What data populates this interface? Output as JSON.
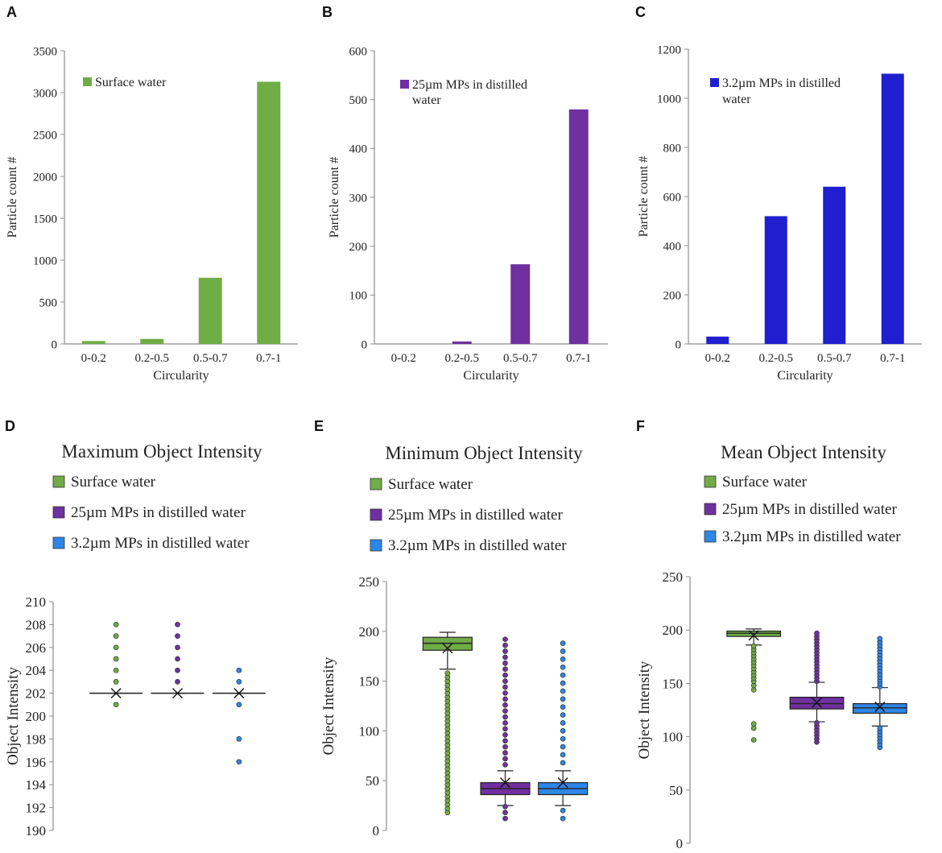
{
  "colors": {
    "green": "#70AD47",
    "purple": "#7030A0",
    "blue_bar": "#1F1FD0",
    "blue_box": "#2E86E8",
    "axis": "#8C8C8C"
  },
  "chart_data": [
    {
      "id": "A",
      "label": "A",
      "type": "bar",
      "categories": [
        "0-0.2",
        "0.2-0.5",
        "0.5-0.7",
        "0.7-1"
      ],
      "values": [
        35,
        60,
        790,
        3130
      ],
      "ylim": [
        0,
        3500
      ],
      "yticks": [
        "0",
        "500",
        "1000",
        "1500",
        "2000",
        "2500",
        "3000",
        "3500"
      ],
      "xlabel": "Circularity",
      "ylabel": "Particle count #",
      "legend": [
        "Surface water"
      ]
    },
    {
      "id": "B",
      "label": "B",
      "type": "bar",
      "categories": [
        "0-0.2",
        "0.2-0.5",
        "0.5-0.7",
        "0.7-1"
      ],
      "values": [
        0,
        5,
        163,
        480
      ],
      "ylim": [
        0,
        600
      ],
      "yticks": [
        "0",
        "100",
        "200",
        "300",
        "400",
        "500",
        "600"
      ],
      "xlabel": "Circularity",
      "ylabel": "Particle count #",
      "legend": [
        "25µm MPs in distilled",
        "water"
      ]
    },
    {
      "id": "C",
      "label": "C",
      "type": "bar",
      "categories": [
        "0-0.2",
        "0.2-0.5",
        "0.5-0.7",
        "0.7-1"
      ],
      "values": [
        30,
        520,
        640,
        1100
      ],
      "ylim": [
        0,
        1200
      ],
      "yticks": [
        "0",
        "200",
        "400",
        "600",
        "800",
        "1000",
        "1200"
      ],
      "xlabel": "Circularity",
      "ylabel": "Particle count #",
      "legend": [
        "3.2µm MPs in distilled",
        "water"
      ]
    },
    {
      "id": "D",
      "label": "D",
      "type": "box",
      "title": "Maximum Object Intensity",
      "ylabel": "Object Intensity",
      "ylim": [
        190,
        210
      ],
      "yticks": [
        "190",
        "192",
        "194",
        "196",
        "198",
        "200",
        "202",
        "204",
        "206",
        "208",
        "210"
      ],
      "legend": [
        "Surface water",
        "25µm MPs in distilled water",
        "3.2µm MPs in distilled water"
      ],
      "series": [
        {
          "name": "Surface water",
          "q1": 202,
          "median": 202,
          "q3": 202,
          "whisker_low": 202,
          "whisker_high": 202,
          "mean": 202,
          "outliers": [
            201,
            203,
            204,
            205,
            206,
            207,
            208
          ]
        },
        {
          "name": "25µm MPs in distilled water",
          "q1": 202,
          "median": 202,
          "q3": 202,
          "whisker_low": 202,
          "whisker_high": 202,
          "mean": 202,
          "outliers": [
            203,
            204,
            205,
            206,
            207,
            208
          ]
        },
        {
          "name": "3.2µm MPs in distilled water",
          "q1": 202,
          "median": 202,
          "q3": 202,
          "whisker_low": 202,
          "whisker_high": 202,
          "mean": 202,
          "outliers": [
            196,
            198,
            201,
            203,
            204
          ]
        }
      ]
    },
    {
      "id": "E",
      "label": "E",
      "type": "box",
      "title": "Minimum Object Intensity",
      "ylabel": "Object Intensity",
      "ylim": [
        0,
        250
      ],
      "yticks": [
        "0",
        "50",
        "100",
        "150",
        "200",
        "250"
      ],
      "legend": [
        "Surface water",
        "25µm MPs in distilled water",
        "3.2µm MPs in distilled water"
      ],
      "series": [
        {
          "name": "Surface water",
          "q1": 181,
          "median": 188,
          "q3": 194,
          "whisker_low": 162,
          "whisker_high": 199,
          "mean": 183,
          "outliers_range": [
            18,
            160,
            4
          ]
        },
        {
          "name": "25µm MPs in distilled water",
          "q1": 36,
          "median": 42,
          "q3": 48,
          "whisker_low": 25,
          "whisker_high": 60,
          "mean": 48,
          "outliers_range": [
            12,
            197,
            6
          ]
        },
        {
          "name": "3.2µm MPs in distilled water",
          "q1": 36,
          "median": 42,
          "q3": 48,
          "whisker_low": 25,
          "whisker_high": 60,
          "mean": 48,
          "outliers_range": [
            12,
            192,
            8
          ]
        }
      ]
    },
    {
      "id": "F",
      "label": "F",
      "type": "box",
      "title": "Mean Object Intensity",
      "ylabel": "Object Intensity",
      "ylim": [
        0,
        250
      ],
      "yticks": [
        "0",
        "50",
        "100",
        "150",
        "200",
        "250"
      ],
      "legend": [
        "Surface water",
        "25µm MPs in distilled water",
        "3.2µm MPs in distilled water"
      ],
      "series": [
        {
          "name": "Surface water",
          "q1": 194,
          "median": 197,
          "q3": 199,
          "whisker_low": 186,
          "whisker_high": 201,
          "mean": 195,
          "outliers": [
            97,
            108,
            112,
            144,
            148,
            152,
            155,
            158,
            161,
            164,
            167,
            170,
            173,
            176,
            179,
            182,
            185
          ]
        },
        {
          "name": "25µm MPs in distilled water",
          "q1": 126,
          "median": 131,
          "q3": 137,
          "whisker_low": 114,
          "whisker_high": 151,
          "mean": 132,
          "outliers_range": [
            95,
            198,
            3
          ]
        },
        {
          "name": "3.2µm MPs in distilled water",
          "q1": 122,
          "median": 127,
          "q3": 131,
          "whisker_low": 110,
          "whisker_high": 146,
          "mean": 128,
          "outliers_range": [
            90,
            193,
            3
          ]
        }
      ]
    }
  ]
}
